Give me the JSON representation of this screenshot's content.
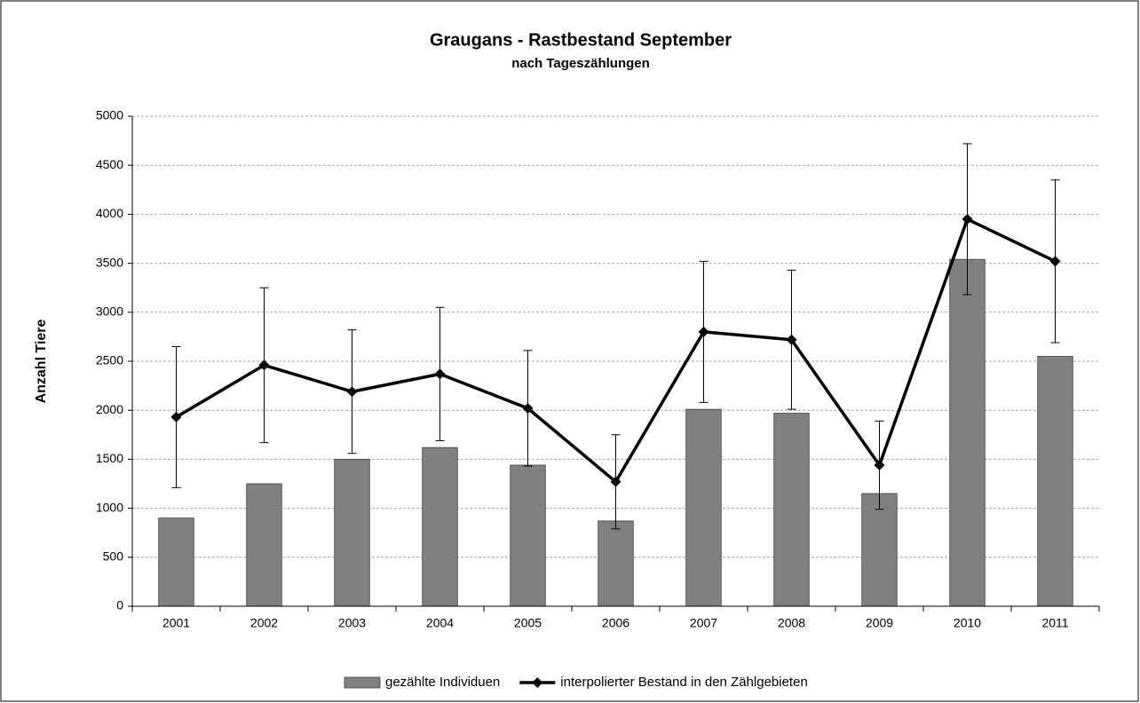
{
  "chart_data": {
    "type": "bar",
    "title": "Graugans - Rastbestand September",
    "subtitle": "nach Tageszählungen",
    "y_label": "Anzahl Tiere",
    "categories": [
      "2001",
      "2002",
      "2003",
      "2004",
      "2005",
      "2006",
      "2007",
      "2008",
      "2009",
      "2010",
      "2011"
    ],
    "series": [
      {
        "name": "gezählte Individuen",
        "type": "bar",
        "color": "#808080",
        "values": [
          900,
          1250,
          1500,
          1620,
          1440,
          870,
          2010,
          1970,
          1150,
          3540,
          2550
        ]
      },
      {
        "name": "interpolierter Bestand in den Zählgebieten",
        "type": "line",
        "color": "#000000",
        "values": [
          1930,
          2460,
          2190,
          2370,
          2020,
          1270,
          2800,
          2720,
          1440,
          3950,
          3520
        ],
        "errors": [
          720,
          790,
          630,
          680,
          590,
          480,
          720,
          710,
          450,
          770,
          830
        ]
      }
    ],
    "ylim": [
      0,
      5000
    ],
    "yticks": [
      0,
      500,
      1000,
      1500,
      2000,
      2500,
      3000,
      3500,
      4000,
      4500,
      5000
    ],
    "grid": true,
    "legend": "bottom"
  }
}
